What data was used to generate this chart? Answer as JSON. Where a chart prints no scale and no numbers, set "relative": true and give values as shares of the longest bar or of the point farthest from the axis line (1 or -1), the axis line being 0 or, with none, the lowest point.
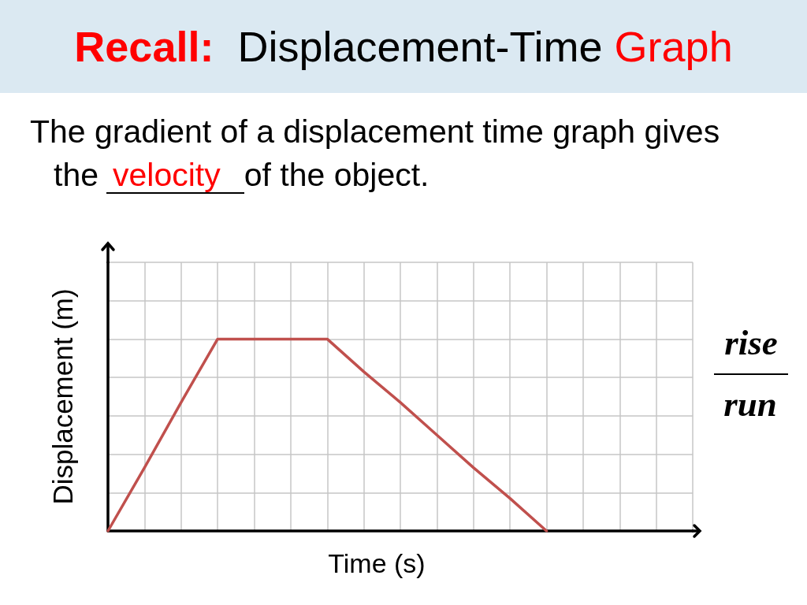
{
  "chart_data": {
    "type": "line",
    "title": "Recall:  Displacement-Time Graph",
    "subtitle": "The gradient of a displacement time graph gives",
    "xlabel": "Time (s)",
    "ylabel": "Displacement (m)",
    "annotations": [
      "the",
      "velocity",
      "of the object.",
      "rise",
      "run"
    ],
    "categories": [
      null,
      null,
      null,
      null,
      null,
      null,
      null,
      null,
      null,
      null,
      null,
      null,
      null,
      null,
      null,
      null,
      null
    ],
    "relative": true,
    "series": [
      {
        "color": "#c0504d",
        "values": [
          0,
          0.33,
          0.67,
          1,
          1,
          1,
          1,
          0.83,
          0.67,
          0.5,
          0.33,
          0.17,
          0,
          null,
          null,
          null,
          null
        ]
      }
    ],
    "grid": true,
    "marker": "none",
    "line_style": "solid"
  }
}
